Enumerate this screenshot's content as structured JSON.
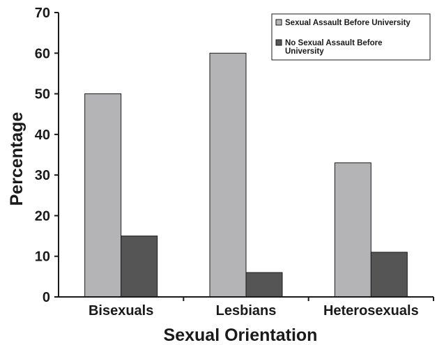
{
  "chart_data": {
    "type": "bar",
    "title": "",
    "xlabel": "Sexual Orientation",
    "ylabel": "Percentage",
    "categories": [
      "Bisexuals",
      "Lesbians",
      "Heterosexuals"
    ],
    "series": [
      {
        "name": "Sexual Assault Before University",
        "values": [
          50,
          60,
          33
        ],
        "color": "#b4b4b7"
      },
      {
        "name": "No Sexual Assault Before University",
        "values": [
          15,
          6,
          11
        ],
        "color": "#555555"
      }
    ],
    "legend_lines": [
      [
        "Sexual Assault Before University"
      ],
      [
        "No Sexual Assault Before",
        "University"
      ]
    ],
    "ylim": [
      0,
      70
    ],
    "yticks": [
      "0",
      "10",
      "20",
      "30",
      "40",
      "50",
      "60",
      "70"
    ],
    "grid": false,
    "legend_position": "top-right"
  }
}
